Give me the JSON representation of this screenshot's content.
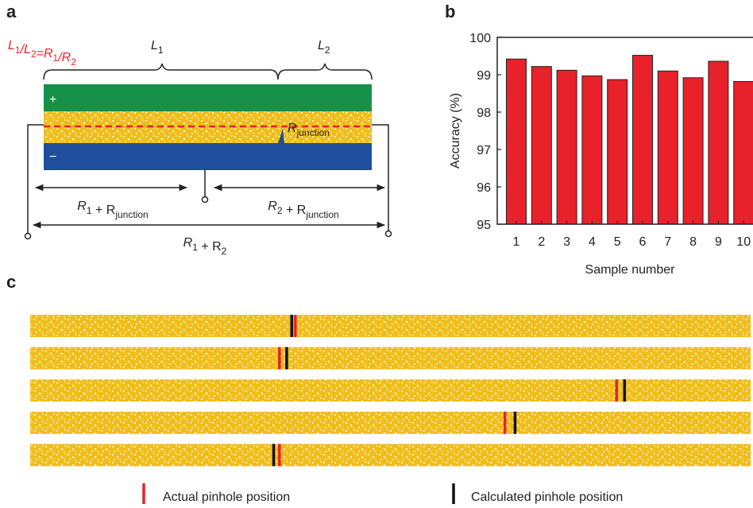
{
  "panel_labels": [
    "a",
    "b",
    "c"
  ],
  "diagram": {
    "formula": [
      {
        "t": "L",
        "s": "1"
      },
      {
        "t": "/L",
        "s": "2"
      },
      {
        "t": "=R",
        "s": "1"
      },
      {
        "t": "/R",
        "s": "2"
      }
    ],
    "l1": [
      {
        "t": "L",
        "s": "1"
      }
    ],
    "l2": [
      {
        "t": "L",
        "s": "2"
      }
    ],
    "plus": "+",
    "minus": "−",
    "junction": [
      {
        "t": "R",
        "s": "junction"
      }
    ],
    "left_resistance": [
      {
        "t": "R",
        "s": "1"
      },
      {
        "t": " + R",
        "s": "junction"
      }
    ],
    "right_resistance": [
      {
        "t": "R",
        "s": "2"
      },
      {
        "t": " + R",
        "s": "junction"
      }
    ],
    "total_resistance": [
      {
        "t": "R",
        "s": "1"
      },
      {
        "t": " + R",
        "s": "2"
      }
    ]
  },
  "chart_data": {
    "type": "bar",
    "categories": [
      "1",
      "2",
      "3",
      "4",
      "5",
      "6",
      "7",
      "8",
      "9",
      "10"
    ],
    "values": [
      99.42,
      99.22,
      99.12,
      98.97,
      98.87,
      99.52,
      99.1,
      98.92,
      99.36,
      98.82
    ],
    "color": "#e8212b",
    "ylim": [
      95,
      100
    ],
    "yticks": [
      95,
      96,
      97,
      98,
      99,
      100
    ],
    "xlabel": "Sample number",
    "ylabel": "Accuracy (%)"
  },
  "pinhole_strips": {
    "xlim": [
      0,
      100
    ],
    "rows": [
      {
        "actual": 36.8,
        "calculated": 36.3
      },
      {
        "actual": 34.6,
        "calculated": 35.6
      },
      {
        "actual": 81.4,
        "calculated": 82.5
      },
      {
        "actual": 65.9,
        "calculated": 67.3
      },
      {
        "actual": 34.6,
        "calculated": 33.8
      }
    ],
    "actual_color": "#e8212b",
    "calculated_color": "#111111",
    "legend": {
      "actual": "Actual pinhole position",
      "calculated": "Calculated pinhole position"
    }
  }
}
